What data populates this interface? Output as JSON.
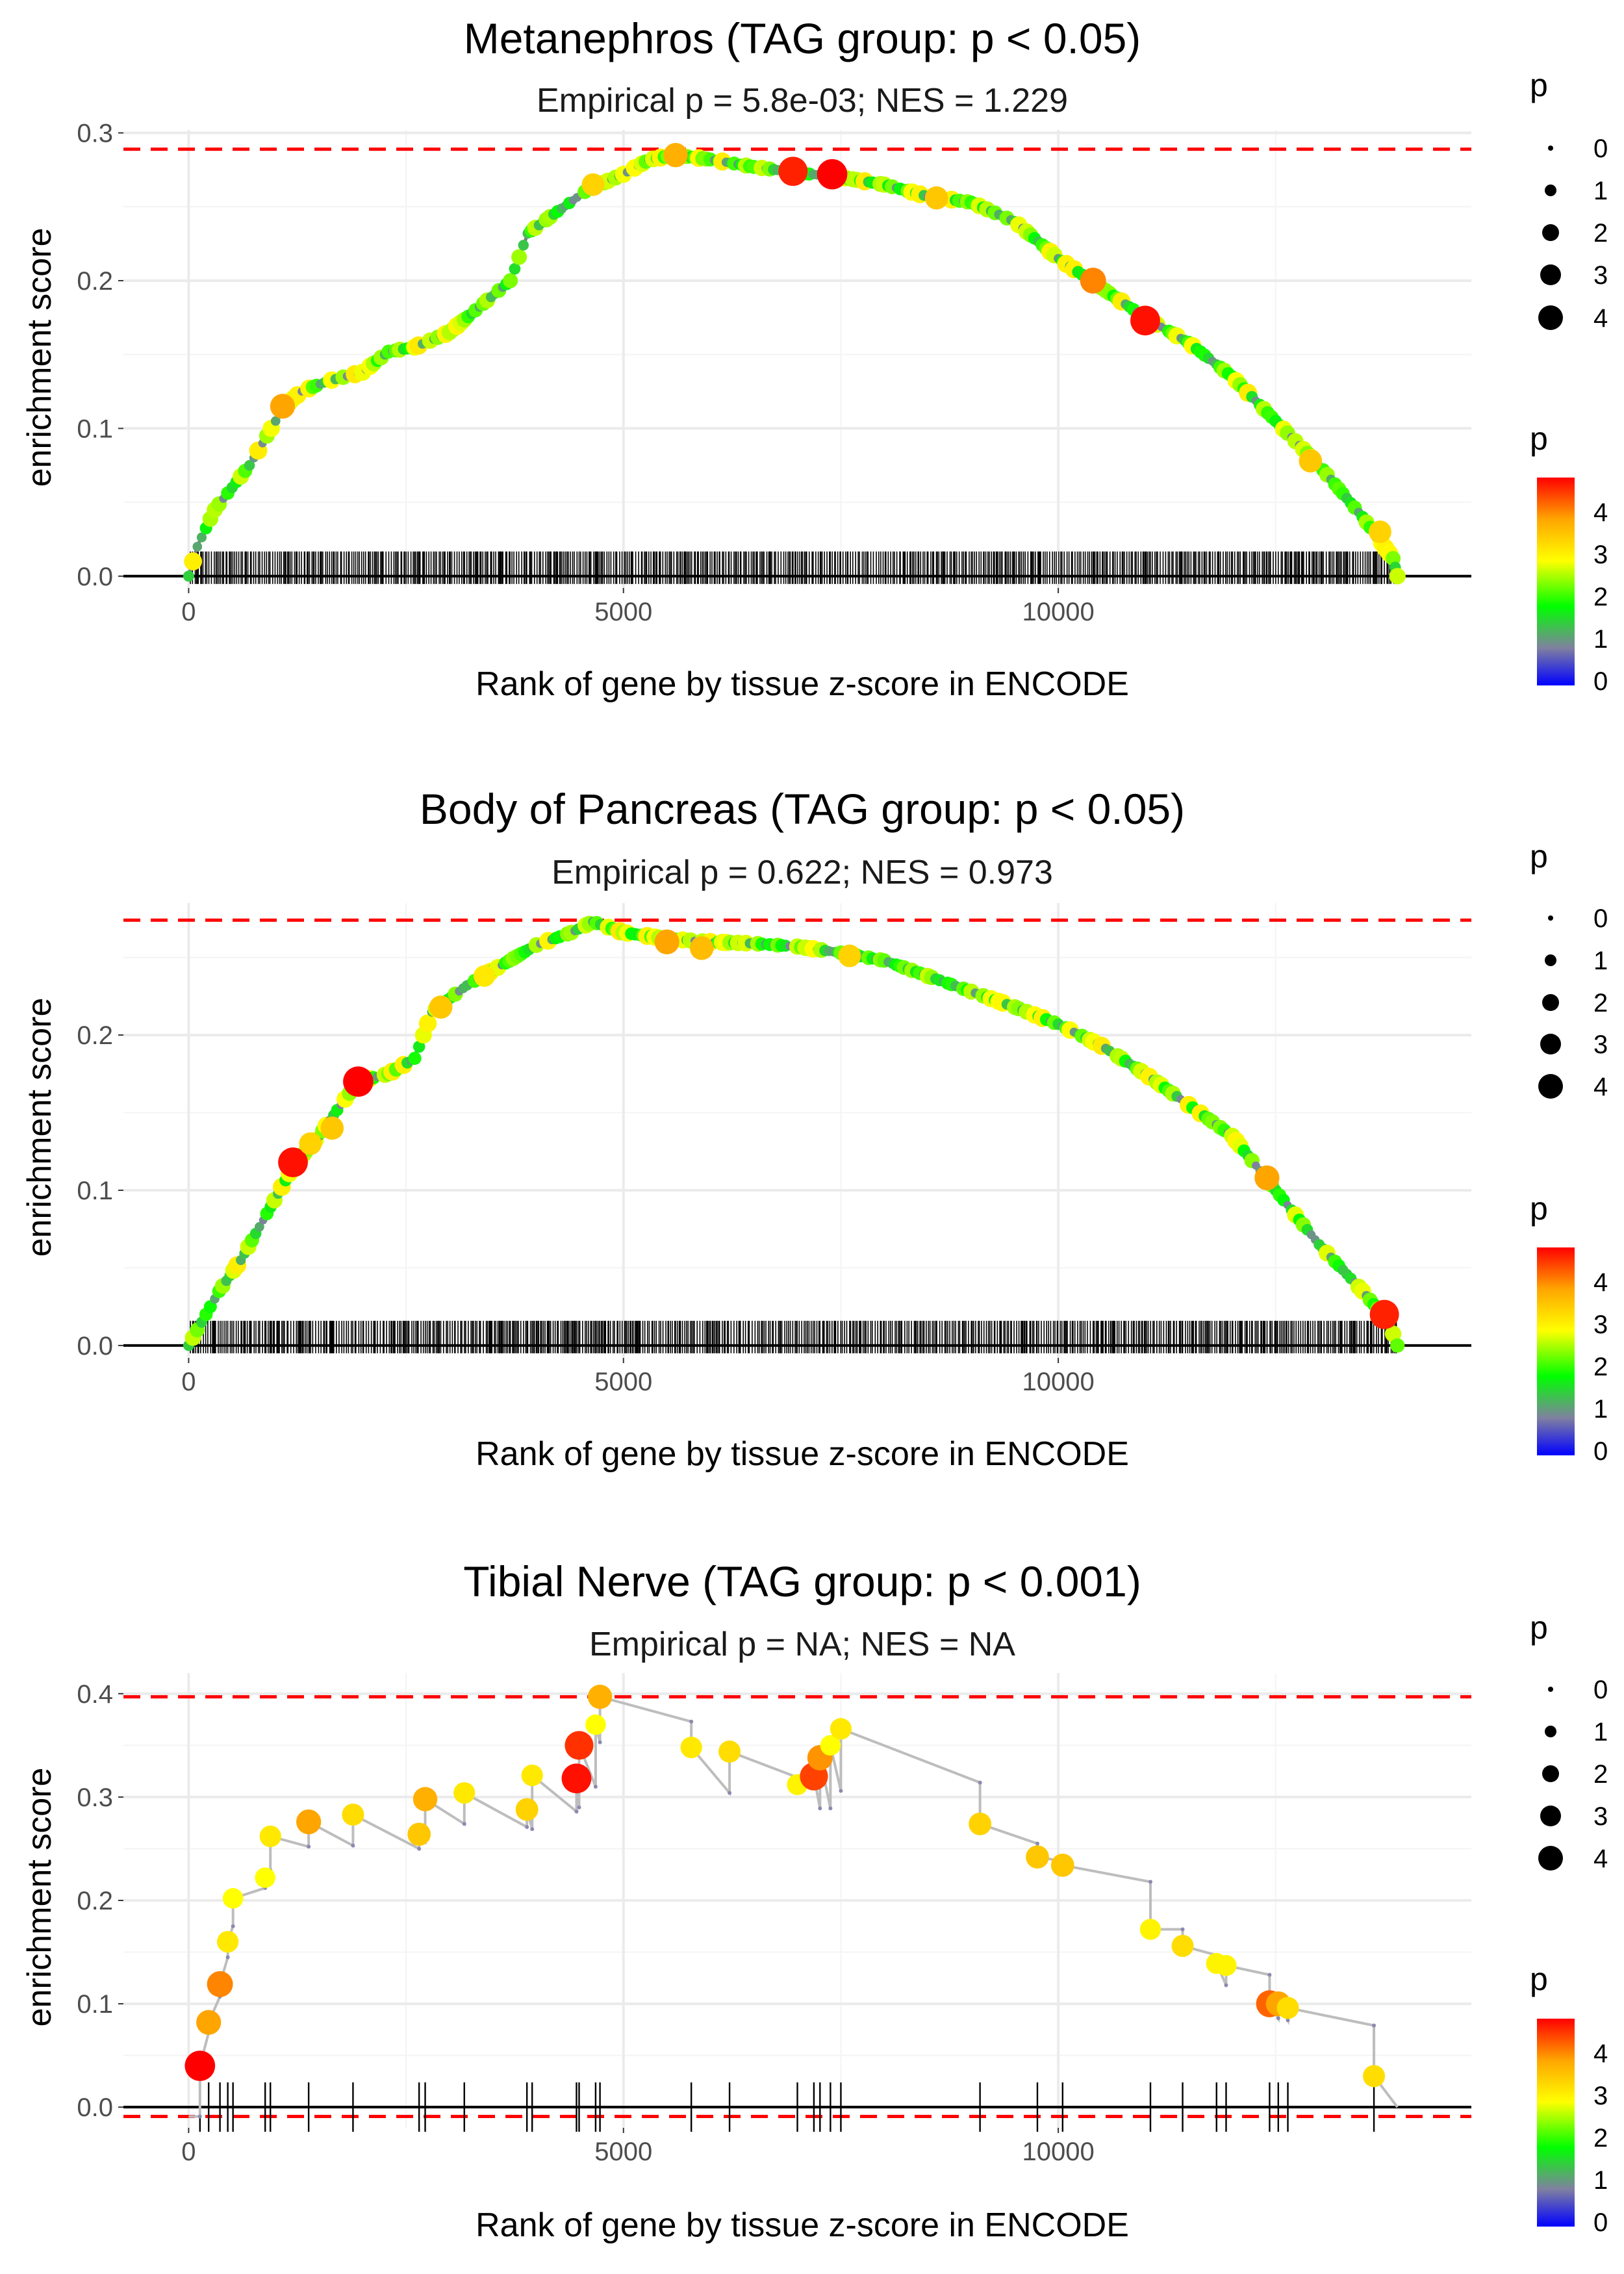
{
  "figure": {
    "colorbar_stops": [
      "#0000ff",
      "#8080a0",
      "#00ff00",
      "#ffff00",
      "#ffa500",
      "#ff0000"
    ],
    "grid_color": "#ebebeb",
    "threshold_color": "#ff0000"
  },
  "chart_data": [
    {
      "type": "line",
      "title": "Metanephros (TAG group: p < 0.05)",
      "subtitle": "Empirical p = 5.8e-03; NES = 1.229",
      "xlabel": "Rank of gene by tissue z-score in ENCODE",
      "ylabel": "enrichment score",
      "xlim": [
        -750,
        14750
      ],
      "ylim": [
        -0.008,
        0.302
      ],
      "xticks": [
        0,
        5000,
        10000
      ],
      "xtick_labels": [
        "0",
        "5000",
        "10000"
      ],
      "yticks": [
        0.0,
        0.1,
        0.2,
        0.3
      ],
      "ytick_labels": [
        "0.0",
        "0.1",
        "0.2",
        "0.3"
      ],
      "threshold_lines": [
        0.289
      ],
      "gene_range": [
        0,
        13900
      ],
      "hits": "dense",
      "curve": [
        [
          0,
          0.0
        ],
        [
          100,
          0.02
        ],
        [
          300,
          0.045
        ],
        [
          500,
          0.06
        ],
        [
          700,
          0.075
        ],
        [
          900,
          0.095
        ],
        [
          1100,
          0.115
        ],
        [
          1300,
          0.125
        ],
        [
          1600,
          0.132
        ],
        [
          2000,
          0.138
        ],
        [
          2300,
          0.152
        ],
        [
          2600,
          0.155
        ],
        [
          3000,
          0.165
        ],
        [
          3300,
          0.18
        ],
        [
          3700,
          0.2
        ],
        [
          3900,
          0.232
        ],
        [
          4200,
          0.245
        ],
        [
          4600,
          0.262
        ],
        [
          5000,
          0.272
        ],
        [
          5300,
          0.282
        ],
        [
          5600,
          0.285
        ],
        [
          6000,
          0.282
        ],
        [
          6500,
          0.277
        ],
        [
          7000,
          0.273
        ],
        [
          7500,
          0.27
        ],
        [
          8000,
          0.265
        ],
        [
          8500,
          0.257
        ],
        [
          9000,
          0.253
        ],
        [
          9500,
          0.24
        ],
        [
          10000,
          0.215
        ],
        [
          10500,
          0.195
        ],
        [
          11000,
          0.175
        ],
        [
          11500,
          0.158
        ],
        [
          12000,
          0.135
        ],
        [
          12500,
          0.105
        ],
        [
          13000,
          0.075
        ],
        [
          13500,
          0.04
        ],
        [
          13850,
          0.012
        ],
        [
          13900,
          0.0
        ]
      ],
      "highlight_points": [
        [
          1080,
          0.115,
          3.6
        ],
        [
          4650,
          0.265,
          3.2
        ],
        [
          5600,
          0.285,
          3.5
        ],
        [
          6950,
          0.274,
          4.4
        ],
        [
          7400,
          0.272,
          4.6
        ],
        [
          8600,
          0.256,
          3.3
        ],
        [
          10400,
          0.2,
          3.8
        ],
        [
          11000,
          0.173,
          4.5
        ],
        [
          12900,
          0.078,
          3.3
        ],
        [
          13700,
          0.03,
          3.2
        ]
      ],
      "legend": {
        "size_title": "p",
        "size_labels": [
          "0",
          "1",
          "2",
          "3",
          "4"
        ],
        "color_title": "p",
        "color_labels": [
          "4",
          "3",
          "2",
          "1",
          "0"
        ]
      }
    },
    {
      "type": "line",
      "title": "Body of Pancreas (TAG group: p < 0.05)",
      "subtitle": "Empirical p = 0.622; NES = 0.973",
      "xlabel": "Rank of gene by tissue z-score in ENCODE",
      "ylabel": "enrichment score",
      "xlim": [
        -750,
        14750
      ],
      "ylim": [
        -0.008,
        0.285
      ],
      "xticks": [
        0,
        5000,
        10000
      ],
      "xtick_labels": [
        "0",
        "5000",
        "10000"
      ],
      "yticks": [
        0.0,
        0.1,
        0.2
      ],
      "ytick_labels": [
        "0.0",
        "0.1",
        "0.2"
      ],
      "threshold_lines": [
        0.274
      ],
      "gene_range": [
        0,
        13900
      ],
      "hits": "dense",
      "curve": [
        [
          0,
          0.0
        ],
        [
          150,
          0.015
        ],
        [
          350,
          0.035
        ],
        [
          600,
          0.055
        ],
        [
          900,
          0.085
        ],
        [
          1200,
          0.115
        ],
        [
          1500,
          0.135
        ],
        [
          1750,
          0.155
        ],
        [
          1950,
          0.17
        ],
        [
          2300,
          0.175
        ],
        [
          2600,
          0.185
        ],
        [
          2800,
          0.215
        ],
        [
          3200,
          0.232
        ],
        [
          3600,
          0.245
        ],
        [
          4000,
          0.258
        ],
        [
          4400,
          0.266
        ],
        [
          4650,
          0.273
        ],
        [
          5000,
          0.266
        ],
        [
          5500,
          0.262
        ],
        [
          6000,
          0.26
        ],
        [
          6500,
          0.259
        ],
        [
          7000,
          0.257
        ],
        [
          7500,
          0.253
        ],
        [
          8000,
          0.248
        ],
        [
          8500,
          0.238
        ],
        [
          9000,
          0.228
        ],
        [
          9500,
          0.218
        ],
        [
          10000,
          0.207
        ],
        [
          10500,
          0.193
        ],
        [
          11000,
          0.175
        ],
        [
          11500,
          0.155
        ],
        [
          12000,
          0.135
        ],
        [
          12500,
          0.1
        ],
        [
          13000,
          0.065
        ],
        [
          13500,
          0.035
        ],
        [
          13800,
          0.015
        ],
        [
          13900,
          0.0
        ]
      ],
      "highlight_points": [
        [
          1200,
          0.118,
          4.5
        ],
        [
          1400,
          0.13,
          3.2
        ],
        [
          1650,
          0.14,
          3.3
        ],
        [
          1950,
          0.17,
          4.6
        ],
        [
          2900,
          0.218,
          3.3
        ],
        [
          3400,
          0.238,
          3.0
        ],
        [
          5500,
          0.26,
          3.6
        ],
        [
          5900,
          0.256,
          3.4
        ],
        [
          7600,
          0.251,
          3.2
        ],
        [
          12400,
          0.108,
          3.6
        ],
        [
          13750,
          0.02,
          4.4
        ]
      ],
      "legend": {
        "size_title": "p",
        "size_labels": [
          "0",
          "1",
          "2",
          "3",
          "4"
        ],
        "color_title": "p",
        "color_labels": [
          "4",
          "3",
          "2",
          "1",
          "0"
        ]
      }
    },
    {
      "type": "line",
      "title": "Tibial Nerve (TAG group: p < 0.001)",
      "subtitle": "Empirical p = NA; NES = NA",
      "xlabel": "Rank of gene by tissue z-score in ENCODE",
      "ylabel": "enrichment score",
      "xlim": [
        -750,
        14750
      ],
      "ylim": [
        -0.02,
        0.42
      ],
      "xticks": [
        0,
        5000,
        10000
      ],
      "xtick_labels": [
        "0",
        "5000",
        "10000"
      ],
      "yticks": [
        0.0,
        0.1,
        0.2,
        0.3,
        0.4
      ],
      "ytick_labels": [
        "0.0",
        "0.1",
        "0.2",
        "0.3",
        "0.4"
      ],
      "threshold_lines": [
        0.397,
        -0.009
      ],
      "gene_range": [
        0,
        13900
      ],
      "hits": [
        130,
        230,
        360,
        450,
        510,
        880,
        940,
        1380,
        1890,
        2650,
        2720,
        3170,
        3890,
        3950,
        4460,
        4490,
        4680,
        4730,
        5780,
        6220,
        7000,
        7190,
        7260,
        7380,
        7500,
        9100,
        9760,
        10050,
        11060,
        11430,
        11820,
        11930,
        12430,
        12530,
        12640,
        13630
      ],
      "drops_to": [
        -0.009,
        0.072,
        0.107,
        0.145,
        0.175,
        0.212,
        0.229,
        0.252,
        0.253,
        0.25,
        0.257,
        0.274,
        0.271,
        0.269,
        0.286,
        0.29,
        0.31,
        0.353,
        0.373,
        0.304,
        0.319,
        0.313,
        0.289,
        0.289,
        0.306,
        0.314,
        0.255,
        0.238,
        0.218,
        0.172,
        0.147,
        0.118,
        0.128,
        0.086,
        0.084,
        0.079,
        0.0
      ],
      "curve_note": "",
      "highlight_points": [
        [
          130,
          0.04,
          4.6
        ],
        [
          230,
          0.082,
          3.6
        ],
        [
          360,
          0.119,
          3.8
        ],
        [
          450,
          0.16,
          3.0
        ],
        [
          510,
          0.202,
          2.8
        ],
        [
          880,
          0.222,
          2.8
        ],
        [
          940,
          0.262,
          3.0
        ],
        [
          1380,
          0.276,
          3.6
        ],
        [
          1890,
          0.283,
          3.1
        ],
        [
          2650,
          0.264,
          3.3
        ],
        [
          2720,
          0.298,
          3.5
        ],
        [
          3170,
          0.304,
          3.0
        ],
        [
          3890,
          0.288,
          3.2
        ],
        [
          3950,
          0.321,
          3.0
        ],
        [
          4460,
          0.318,
          4.5
        ],
        [
          4490,
          0.35,
          4.3
        ],
        [
          4680,
          0.37,
          2.8
        ],
        [
          4730,
          0.397,
          3.5
        ],
        [
          5780,
          0.348,
          3.0
        ],
        [
          6220,
          0.344,
          3.1
        ],
        [
          7000,
          0.312,
          2.9
        ],
        [
          7190,
          0.32,
          4.2
        ],
        [
          7260,
          0.338,
          3.7
        ],
        [
          7380,
          0.35,
          2.8
        ],
        [
          7500,
          0.366,
          3.0
        ],
        [
          9100,
          0.274,
          3.2
        ],
        [
          9760,
          0.242,
          3.3
        ],
        [
          10050,
          0.234,
          3.3
        ],
        [
          11060,
          0.172,
          2.9
        ],
        [
          11430,
          0.156,
          3.1
        ],
        [
          11820,
          0.139,
          2.9
        ],
        [
          11930,
          0.137,
          2.9
        ],
        [
          12430,
          0.1,
          4.0
        ],
        [
          12530,
          0.1,
          3.6
        ],
        [
          12640,
          0.096,
          3.1
        ],
        [
          13630,
          0.03,
          3.1
        ]
      ],
      "legend": {
        "size_title": "p",
        "size_labels": [
          "0",
          "1",
          "2",
          "3",
          "4"
        ],
        "color_title": "p",
        "color_labels": [
          "4",
          "3",
          "2",
          "1",
          "0"
        ]
      }
    }
  ]
}
